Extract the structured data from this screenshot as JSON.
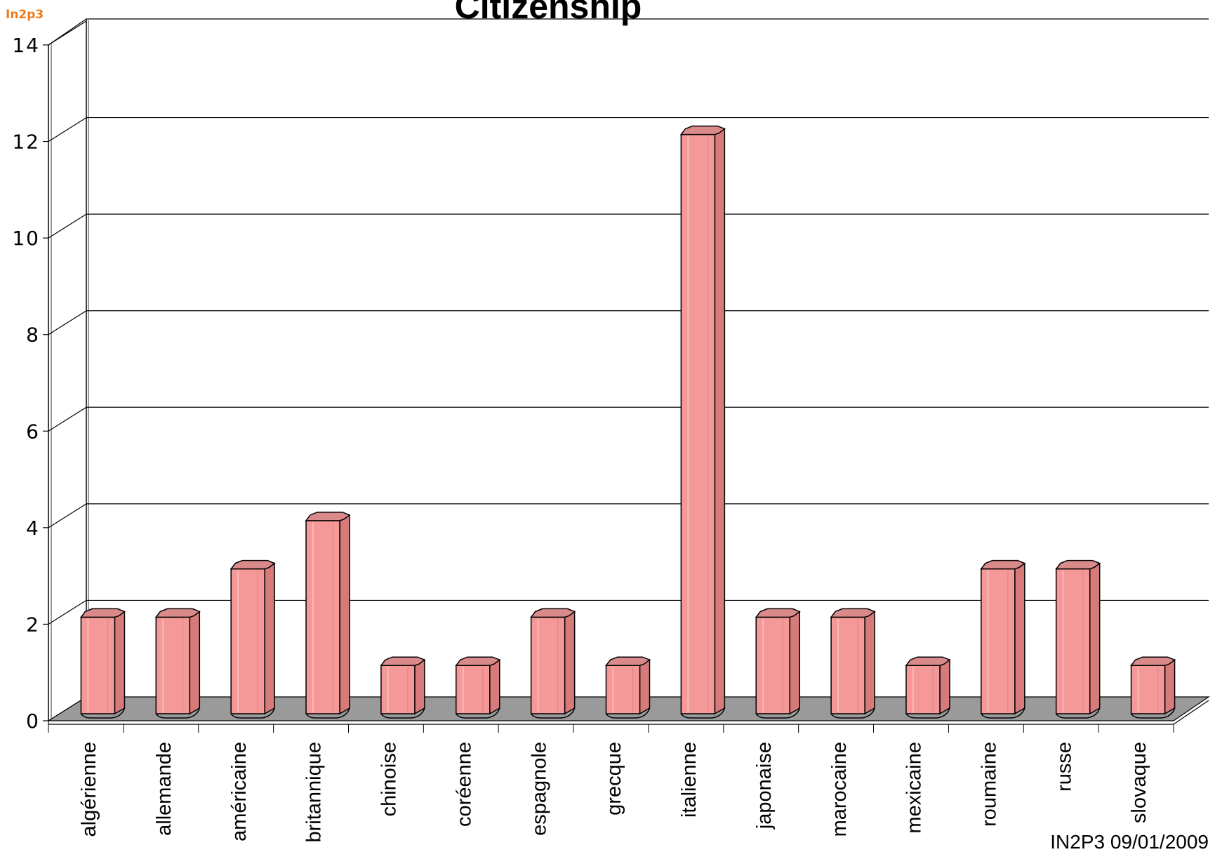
{
  "logo": "In2p3",
  "footer": "IN2P3 09/01/2009",
  "colors": {
    "bar_front": "#f59898",
    "bar_side": "#d67a7a",
    "bar_top": "#d98a8a",
    "floor": "#9a9a9a",
    "grid": "#000000"
  },
  "chart_data": {
    "type": "bar",
    "title": "Citizenship",
    "xlabel": "",
    "ylabel": "",
    "ylim": [
      0,
      14
    ],
    "yticks": [
      "0",
      "2",
      "4",
      "6",
      "8",
      "10",
      "12",
      "14"
    ],
    "grid": true,
    "categories": [
      "algérienne",
      "allemande",
      "américaine",
      "britannique",
      "chinoise",
      "coréenne",
      "espagnole",
      "grecque",
      "italienne",
      "japonaise",
      "marocaine",
      "mexicaine",
      "roumaine",
      "russe",
      "slovaque"
    ],
    "values": [
      2,
      2,
      3,
      4,
      1,
      1,
      2,
      1,
      12,
      2,
      2,
      1,
      3,
      3,
      1
    ]
  }
}
